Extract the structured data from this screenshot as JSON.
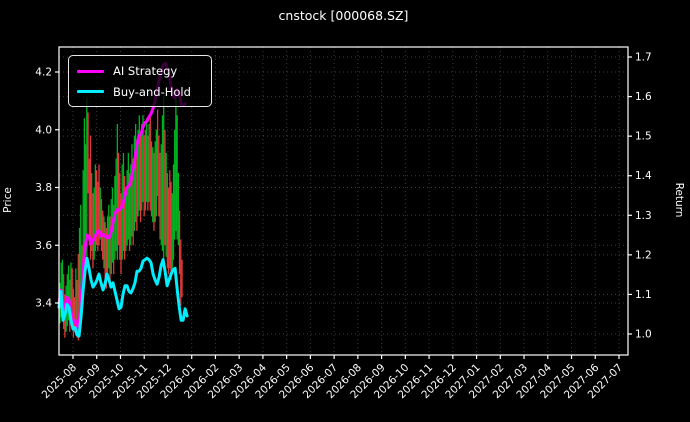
{
  "chart_data": {
    "type": "line",
    "title": "cnstock [000068.SZ]",
    "left_axis": {
      "label": "Price",
      "tick_labels": [
        "4.2",
        "4.0",
        "3.8",
        "3.6",
        "3.4"
      ],
      "tick_values": [
        4.2,
        4.0,
        3.8,
        3.6,
        3.4
      ]
    },
    "right_axis": {
      "label": "Return",
      "tick_labels": [
        "1.7",
        "1.6",
        "1.5",
        "1.4",
        "1.3",
        "1.2",
        "1.1",
        "1.0"
      ],
      "tick_values": [
        1.7,
        1.6,
        1.5,
        1.4,
        1.3,
        1.2,
        1.1,
        1.0
      ]
    },
    "x_axis": {
      "tick_labels": [
        "2025-08",
        "2025-09",
        "2025-10",
        "2025-11",
        "2025-12",
        "2026-01",
        "2026-02",
        "2026-03",
        "2026-04",
        "2026-05",
        "2026-06",
        "2026-07",
        "2026-08",
        "2026-09",
        "2026-10",
        "2026-11",
        "2026-12",
        "2027-01",
        "2027-02",
        "2027-03",
        "2027-04",
        "2027-05",
        "2027-06",
        "2027-07"
      ],
      "label_rotation_deg": 45,
      "grid": "dotted"
    },
    "legend": {
      "position": "upper-left",
      "items": [
        {
          "label": "AI Strategy",
          "color": "#ff00ff"
        },
        {
          "label": "Buy-and-Hold",
          "color": "#00eeff"
        }
      ]
    },
    "series": [
      {
        "name": "AI Strategy",
        "color": "#ff00ff",
        "width": 3,
        "start_m": -0.59,
        "step_m": 0.0843,
        "values": [
          3.4,
          3.445,
          3.38,
          3.39,
          3.42,
          3.41,
          3.37,
          3.335,
          3.34,
          3.32,
          3.315,
          3.41,
          3.51,
          3.59,
          3.635,
          3.63,
          3.605,
          3.615,
          3.63,
          3.645,
          3.65,
          3.632,
          3.638,
          3.632,
          3.626,
          3.626,
          3.645,
          3.68,
          3.71,
          3.723,
          3.722,
          3.728,
          3.745,
          3.772,
          3.8,
          3.805,
          3.825,
          3.862,
          3.905,
          3.95,
          3.98,
          3.985,
          4.01,
          4.025,
          4.03,
          4.045,
          4.055,
          4.075,
          4.1,
          4.14,
          4.17,
          4.2,
          4.225,
          4.23,
          4.215,
          4.19,
          4.15,
          4.115,
          4.11,
          4.14,
          4.13,
          4.09,
          4.085,
          4.09
        ]
      },
      {
        "name": "Buy-and-Hold",
        "color": "#00eeff",
        "width": 3,
        "start_m": -0.59,
        "step_m": 0.0843,
        "values": [
          3.385,
          3.44,
          3.34,
          3.36,
          3.395,
          3.385,
          3.34,
          3.31,
          3.315,
          3.29,
          3.285,
          3.35,
          3.44,
          3.51,
          3.555,
          3.52,
          3.48,
          3.455,
          3.465,
          3.48,
          3.5,
          3.47,
          3.445,
          3.465,
          3.5,
          3.48,
          3.455,
          3.47,
          3.44,
          3.41,
          3.38,
          3.385,
          3.43,
          3.46,
          3.46,
          3.44,
          3.435,
          3.45,
          3.47,
          3.51,
          3.51,
          3.52,
          3.545,
          3.55,
          3.555,
          3.55,
          3.54,
          3.5,
          3.48,
          3.465,
          3.49,
          3.53,
          3.55,
          3.51,
          3.46,
          3.48,
          3.5,
          3.515,
          3.52,
          3.45,
          3.39,
          3.34,
          3.34,
          3.38,
          3.355
        ]
      }
    ],
    "candles": {
      "start_m": -0.548,
      "step_m": 0.0514,
      "up_color": "#00b321",
      "down_color": "#e03a3a",
      "bars": [
        [
          3.33,
          3.47,
          "g"
        ],
        [
          3.35,
          3.54,
          "g"
        ],
        [
          3.37,
          3.55,
          "g"
        ],
        [
          3.31,
          3.5,
          "r"
        ],
        [
          3.28,
          3.43,
          "r"
        ],
        [
          3.3,
          3.46,
          "g"
        ],
        [
          3.32,
          3.5,
          "g"
        ],
        [
          3.34,
          3.53,
          "g"
        ],
        [
          3.3,
          3.48,
          "r"
        ],
        [
          3.38,
          3.54,
          "g"
        ],
        [
          3.35,
          3.52,
          "r"
        ],
        [
          3.28,
          3.45,
          "r"
        ],
        [
          3.3,
          3.42,
          "r"
        ],
        [
          3.32,
          3.52,
          "g"
        ],
        [
          3.28,
          3.48,
          "r"
        ],
        [
          3.27,
          3.57,
          "r"
        ],
        [
          3.35,
          3.66,
          "g"
        ],
        [
          3.4,
          3.74,
          "g"
        ],
        [
          3.45,
          3.6,
          "r"
        ],
        [
          3.5,
          3.86,
          "g"
        ],
        [
          3.52,
          4.04,
          "g"
        ],
        [
          3.6,
          3.95,
          "r"
        ],
        [
          3.56,
          4.11,
          "g"
        ],
        [
          3.78,
          4.06,
          "r"
        ],
        [
          3.6,
          3.9,
          "r"
        ],
        [
          3.55,
          3.98,
          "r"
        ],
        [
          3.58,
          3.85,
          "g"
        ],
        [
          3.52,
          3.78,
          "r"
        ],
        [
          3.55,
          3.8,
          "g"
        ],
        [
          3.58,
          3.88,
          "g"
        ],
        [
          3.6,
          3.86,
          "r"
        ],
        [
          3.58,
          3.82,
          "r"
        ],
        [
          3.6,
          3.88,
          "r"
        ],
        [
          3.62,
          3.8,
          "g"
        ],
        [
          3.58,
          3.76,
          "r"
        ],
        [
          3.55,
          3.72,
          "r"
        ],
        [
          3.52,
          3.7,
          "g"
        ],
        [
          3.48,
          3.68,
          "r"
        ],
        [
          3.45,
          3.66,
          "r"
        ],
        [
          3.5,
          3.7,
          "g"
        ],
        [
          3.52,
          3.74,
          "g"
        ],
        [
          3.48,
          3.7,
          "r"
        ],
        [
          3.5,
          3.76,
          "g"
        ],
        [
          3.54,
          3.8,
          "g"
        ],
        [
          3.5,
          3.74,
          "r"
        ],
        [
          3.55,
          3.84,
          "g"
        ],
        [
          3.58,
          3.9,
          "g"
        ],
        [
          3.55,
          4.02,
          "g"
        ],
        [
          3.6,
          3.92,
          "r"
        ],
        [
          3.55,
          3.85,
          "r"
        ],
        [
          3.5,
          3.78,
          "r"
        ],
        [
          3.55,
          3.88,
          "g"
        ],
        [
          3.58,
          3.92,
          "g"
        ],
        [
          3.55,
          3.84,
          "r"
        ],
        [
          3.58,
          3.8,
          "g"
        ],
        [
          3.6,
          3.86,
          "g"
        ],
        [
          3.62,
          3.92,
          "g"
        ],
        [
          3.58,
          3.85,
          "r"
        ],
        [
          3.6,
          3.88,
          "g"
        ],
        [
          3.63,
          3.95,
          "g"
        ],
        [
          3.6,
          3.9,
          "r"
        ],
        [
          3.65,
          3.98,
          "g"
        ],
        [
          3.68,
          4.02,
          "g"
        ],
        [
          3.65,
          3.95,
          "r"
        ],
        [
          3.7,
          4.0,
          "g"
        ],
        [
          3.72,
          4.05,
          "g"
        ],
        [
          3.68,
          3.98,
          "r"
        ],
        [
          3.72,
          4.02,
          "g"
        ],
        [
          3.75,
          4.05,
          "g"
        ],
        [
          3.7,
          3.98,
          "r"
        ],
        [
          3.72,
          4.0,
          "r"
        ],
        [
          3.75,
          4.04,
          "g"
        ],
        [
          3.72,
          3.98,
          "r"
        ],
        [
          3.75,
          4.02,
          "g"
        ],
        [
          3.72,
          4.06,
          "r"
        ],
        [
          3.7,
          3.96,
          "r"
        ],
        [
          3.68,
          3.94,
          "g"
        ],
        [
          3.65,
          3.92,
          "r"
        ],
        [
          3.68,
          3.96,
          "g"
        ],
        [
          3.7,
          4.0,
          "g"
        ],
        [
          3.77,
          4.07,
          "r"
        ],
        [
          3.7,
          3.98,
          "r"
        ],
        [
          3.62,
          3.92,
          "r"
        ],
        [
          3.6,
          3.95,
          "g"
        ],
        [
          3.58,
          4.05,
          "g"
        ],
        [
          3.55,
          4.12,
          "g"
        ],
        [
          3.6,
          4.0,
          "r"
        ],
        [
          3.56,
          3.92,
          "g"
        ],
        [
          3.52,
          3.85,
          "r"
        ],
        [
          3.5,
          3.8,
          "r"
        ],
        [
          3.52,
          3.86,
          "r"
        ],
        [
          3.48,
          3.82,
          "r"
        ],
        [
          3.5,
          3.78,
          "g"
        ],
        [
          3.55,
          3.88,
          "g"
        ],
        [
          3.62,
          4.0,
          "g"
        ],
        [
          3.65,
          4.14,
          "g"
        ],
        [
          3.62,
          4.05,
          "g"
        ],
        [
          3.6,
          3.85,
          "g"
        ],
        [
          3.5,
          3.72,
          "r"
        ],
        [
          3.39,
          3.62,
          "r"
        ],
        [
          3.42,
          3.55,
          "r"
        ]
      ]
    },
    "colors": {
      "background": "#000000",
      "frame": "#ffffff",
      "grid": "#3c3c3c",
      "text": "#ffffff"
    }
  }
}
